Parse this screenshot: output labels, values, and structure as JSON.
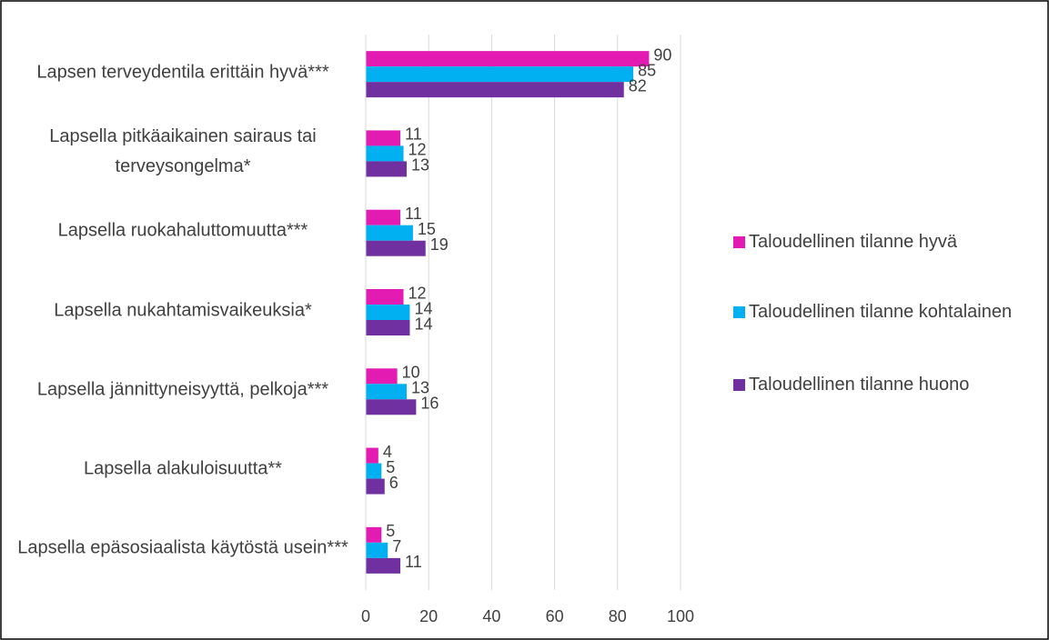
{
  "chart_data": {
    "type": "hbar",
    "categories": [
      "Lapsen terveydentila erittäin hyvä***",
      "Lapsella pitkäaikainen sairaus tai terveysongelma*",
      "Lapsella ruokahaluttomuutta***",
      "Lapsella nukahtamisvaikeuksia*",
      "Lapsella jännittyneisyyttä, pelkoja***",
      "Lapsella alakuloisuutta**",
      "Lapsella epäsosiaalista käytöstä usein***"
    ],
    "series": [
      {
        "name": "Taloudellinen tilanne hyvä",
        "color": "#e31bb3",
        "values": [
          90,
          11,
          11,
          12,
          10,
          4,
          5
        ]
      },
      {
        "name": "Taloudellinen tilanne kohtalainen",
        "color": "#00b0f0",
        "values": [
          85,
          12,
          15,
          14,
          13,
          5,
          7
        ]
      },
      {
        "name": "Taloudellinen tilanne huono",
        "color": "#7030a0",
        "values": [
          82,
          13,
          19,
          14,
          16,
          6,
          11
        ]
      }
    ],
    "xlim": [
      0,
      100
    ],
    "xticks": [
      0,
      20,
      40,
      60,
      80,
      100
    ],
    "grid": true,
    "legend": "right"
  }
}
